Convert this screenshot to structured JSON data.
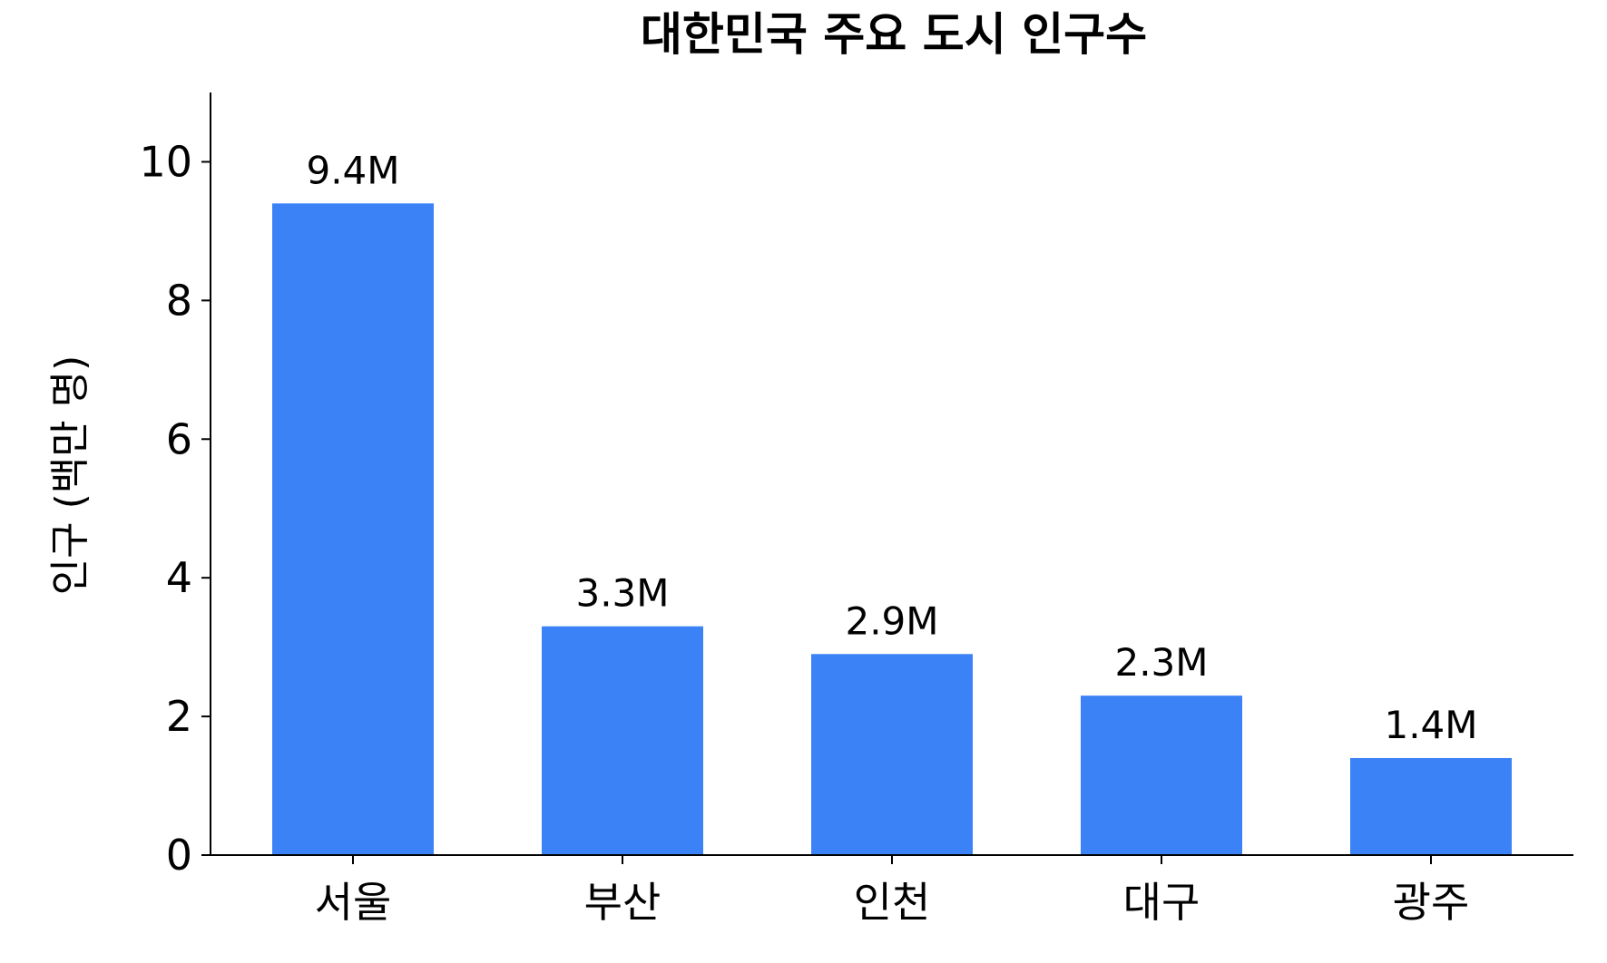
{
  "chart_data": {
    "type": "bar",
    "title": "대한민국 주요 도시 인구수",
    "xlabel": "",
    "ylabel": "인구 (백만 명)",
    "categories": [
      "서울",
      "부산",
      "인천",
      "대구",
      "광주"
    ],
    "values": [
      9.4,
      3.3,
      2.9,
      2.3,
      1.4
    ],
    "data_labels": [
      "9.4M",
      "3.3M",
      "2.9M",
      "2.3M",
      "1.4M"
    ],
    "ylim": [
      0,
      11
    ],
    "yticks": [
      0,
      2,
      4,
      6,
      8,
      10
    ],
    "ytick_labels": [
      "0",
      "2",
      "4",
      "6",
      "8",
      "10"
    ],
    "grid": false,
    "legend": "none",
    "bar_color": "#3b82f6"
  }
}
